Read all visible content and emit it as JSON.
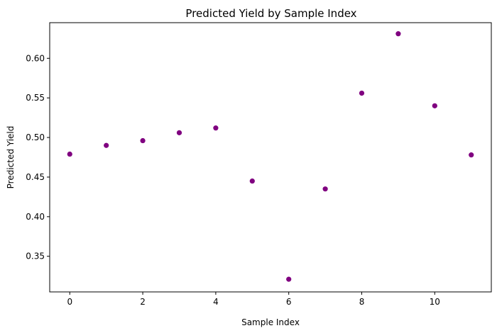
{
  "chart_data": {
    "type": "scatter",
    "title": "Predicted Yield by Sample Index",
    "xlabel": "Sample Index",
    "ylabel": "Predicted Yield",
    "xlim": [
      -0.55,
      11.55
    ],
    "ylim": [
      0.305,
      0.645
    ],
    "xticks": [
      0,
      2,
      4,
      6,
      8,
      10
    ],
    "xtick_labels": [
      "0",
      "2",
      "4",
      "6",
      "8",
      "10"
    ],
    "yticks": [
      0.35,
      0.4,
      0.45,
      0.5,
      0.55,
      0.6
    ],
    "ytick_labels": [
      "0.35",
      "0.40",
      "0.45",
      "0.50",
      "0.55",
      "0.60"
    ],
    "grid": false,
    "marker_color": "#800080",
    "series": [
      {
        "name": "Predicted Yield",
        "x": [
          0,
          1,
          2,
          3,
          4,
          5,
          6,
          7,
          8,
          9,
          10,
          11
        ],
        "y": [
          0.479,
          0.49,
          0.496,
          0.506,
          0.512,
          0.445,
          0.321,
          0.435,
          0.556,
          0.631,
          0.54,
          0.478
        ]
      }
    ]
  }
}
